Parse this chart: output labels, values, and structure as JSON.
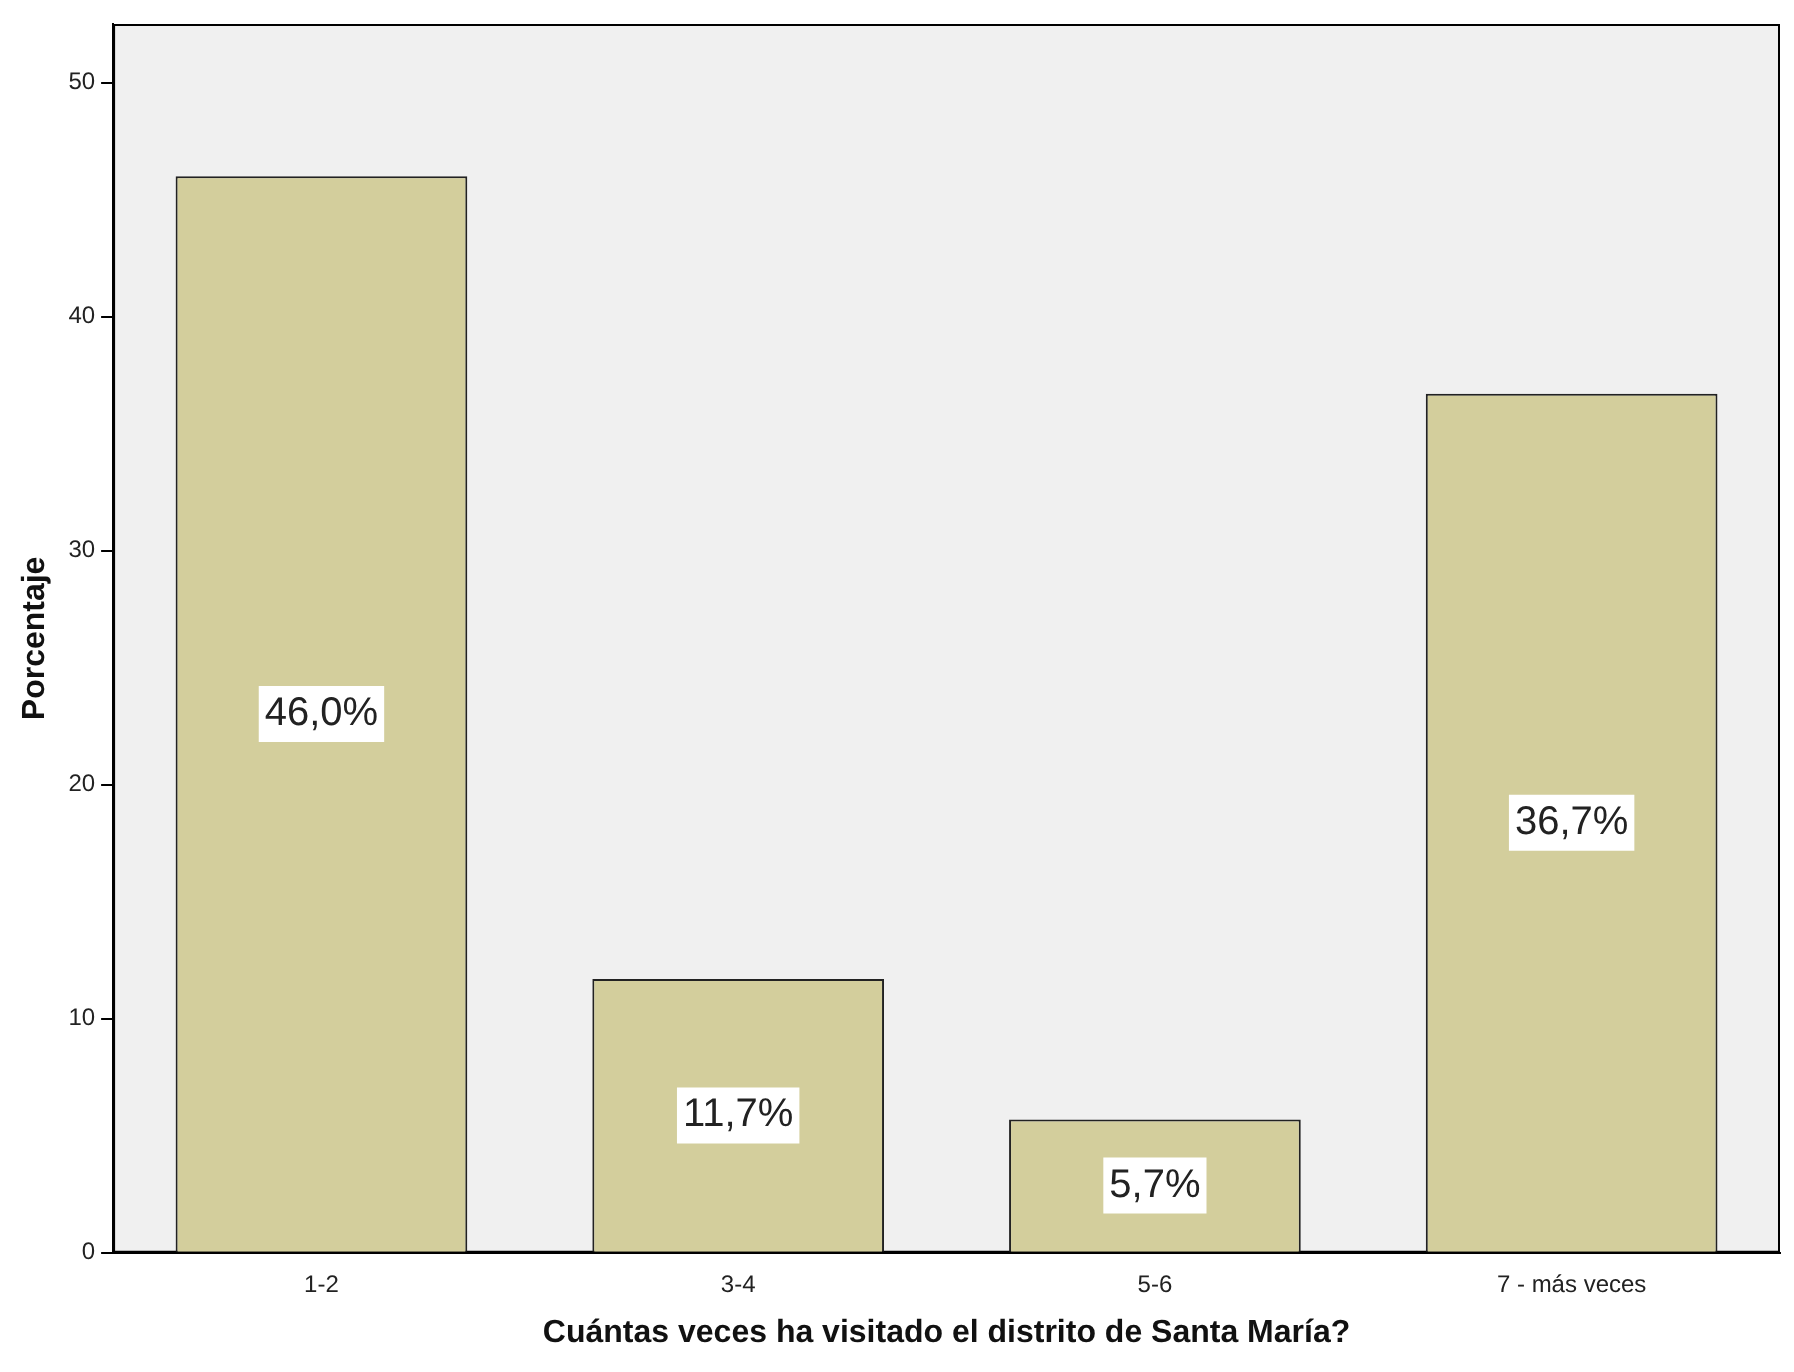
{
  "chart_data": {
    "type": "bar",
    "xlabel": "Cuántas veces ha visitado el distrito de Santa María?",
    "ylabel": "Porcentaje",
    "categories": [
      "1-2",
      "3-4",
      "5-6",
      "7 - más veces"
    ],
    "values": [
      46.0,
      11.7,
      5.7,
      36.7
    ],
    "value_labels": [
      "46,0%",
      "11,7%",
      "5,7%",
      "36,7%"
    ],
    "color": "#d3ce9c",
    "ylim": [
      0,
      52.5
    ],
    "yticks": [
      0,
      10,
      20,
      30,
      40,
      50
    ],
    "grid": false,
    "legend": false
  }
}
